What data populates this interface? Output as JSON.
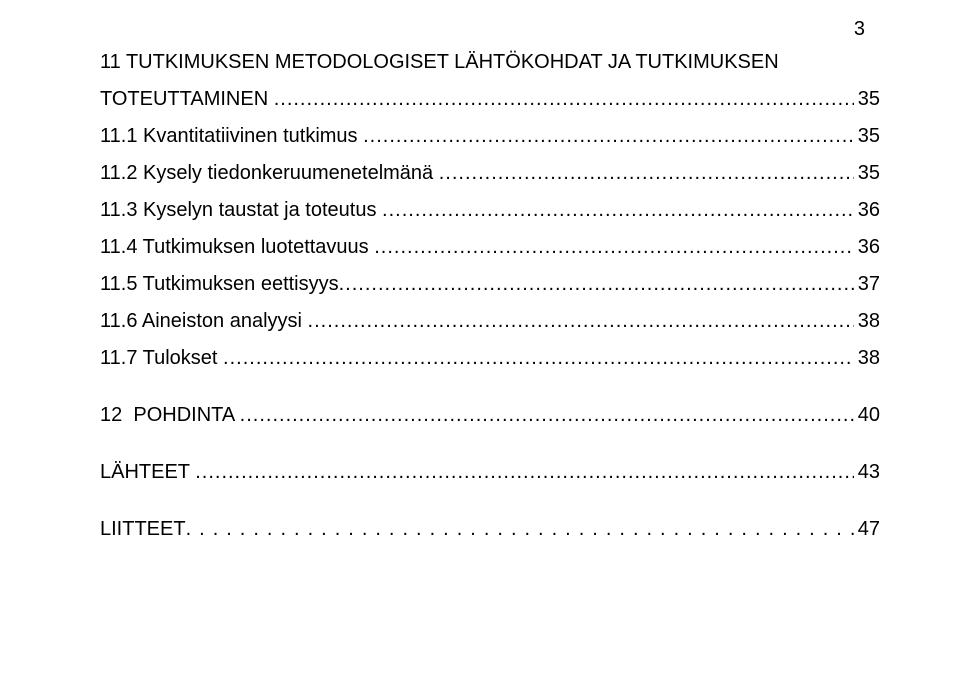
{
  "page_number": "3",
  "leader_fill": "................................................................................................................................................................................................................................................................",
  "entries": [
    {
      "type": "heading_wrap",
      "line1": "11 TUTKIMUKSEN METODOLOGISET LÄHTÖKOHDAT JA TUTKIMUKSEN",
      "line2": "TOTEUTTAMINEN ",
      "page": "35"
    },
    {
      "type": "sub",
      "label": "11.1 Kvantitatiivinen tutkimus ",
      "page": " 35"
    },
    {
      "type": "sub",
      "label": "11.2 Kysely tiedonkeruumenetelmänä ",
      "page": " 35"
    },
    {
      "type": "sub",
      "label": "11.3 Kyselyn taustat ja toteutus ",
      "page": " 36"
    },
    {
      "type": "sub",
      "label": "11.4 Tutkimuksen luotettavuus ",
      "page": " 36"
    },
    {
      "type": "sub",
      "label": "11.5 Tutkimuksen eettisyys",
      "page": " 37"
    },
    {
      "type": "sub",
      "label": "11.6 Aineiston analyysi ",
      "page": " 38"
    },
    {
      "type": "sub",
      "label": "11.7 Tulokset ",
      "page": " 38"
    },
    {
      "type": "top_spaced",
      "label": "12  POHDINTA ",
      "page": "40"
    },
    {
      "type": "top_spaced",
      "label": "LÄHTEET ",
      "page": "43"
    },
    {
      "type": "top_spaced",
      "label": "LIITTEET",
      "page": "47",
      "leader_style": "dots-wide"
    }
  ],
  "colors": {
    "text": "#000000",
    "background": "#ffffff"
  },
  "font_size_pt": 15
}
